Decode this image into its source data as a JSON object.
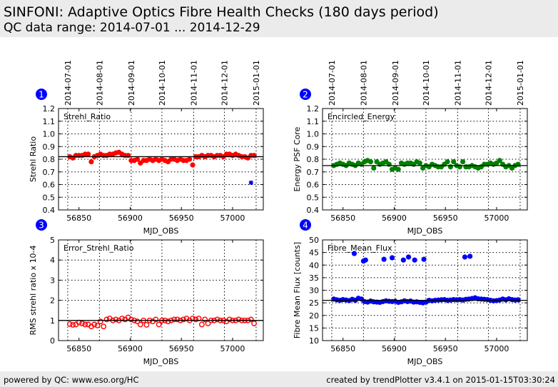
{
  "header": {
    "title": "SINFONI: Adaptive Optics Fibre Health Checks (180 days period)",
    "subtitle": "QC data range: 2014-07-01 ... 2014-12-29"
  },
  "footer": {
    "left": "powered by QC: www.eso.org/HC",
    "right": "created by trendPlotter v3.4.1 on 2015-01-15T03:30:24"
  },
  "colors": {
    "red": "#ff0000",
    "green": "#008000",
    "blue": "#0000ff",
    "header_bg": "#ebebeb"
  },
  "chart_data": {
    "type": "scatter",
    "x_label": "MJD_OBS",
    "xlim": [
      56830,
      57030
    ],
    "x_ticks": [
      56850,
      56900,
      56950,
      57000
    ],
    "date_ticks": [
      {
        "label": "2014-07-01",
        "mjd": 56839
      },
      {
        "label": "2014-08-01",
        "mjd": 56870
      },
      {
        "label": "2014-09-01",
        "mjd": 56901
      },
      {
        "label": "2014-10-01",
        "mjd": 56931
      },
      {
        "label": "2014-11-01",
        "mjd": 56962
      },
      {
        "label": "2014-12-01",
        "mjd": 56992
      },
      {
        "label": "2015-01-01",
        "mjd": 57023
      }
    ],
    "x": [
      56841,
      56844,
      56847,
      56850,
      56853,
      56856,
      56859,
      56862,
      56865,
      56868,
      56871,
      56874,
      56877,
      56880,
      56883,
      56886,
      56889,
      56892,
      56895,
      56898,
      56901,
      56904,
      56907,
      56910,
      56913,
      56916,
      56919,
      56922,
      56925,
      56928,
      56931,
      56934,
      56937,
      56940,
      56943,
      56946,
      56949,
      56952,
      56955,
      56958,
      56961,
      56964,
      56967,
      56970,
      56973,
      56976,
      56979,
      56982,
      56985,
      56988,
      56991,
      56994,
      56997,
      57000,
      57003,
      57006,
      57009,
      57012,
      57015,
      57018,
      57021
    ],
    "panels": [
      {
        "number": "1",
        "name": "Strehl_Ratio",
        "ylabel": "Strehl Ratio",
        "ylim": [
          0.4,
          1.2
        ],
        "y_ticks": [
          "0.4",
          "0.5",
          "0.6",
          "0.7",
          "0.8",
          "0.9",
          "1.0",
          "1.1",
          "1.2"
        ],
        "reference": 0.82,
        "color": "#ff0000",
        "marker": "filled-circle",
        "values": [
          0.82,
          0.81,
          0.83,
          0.83,
          0.83,
          0.84,
          0.84,
          0.78,
          0.82,
          0.83,
          0.84,
          0.83,
          0.83,
          0.84,
          0.84,
          0.85,
          0.855,
          0.84,
          0.83,
          0.83,
          0.79,
          0.79,
          0.8,
          0.77,
          0.79,
          0.79,
          0.8,
          0.79,
          0.8,
          0.79,
          0.8,
          0.79,
          0.78,
          0.8,
          0.8,
          0.79,
          0.8,
          0.79,
          0.79,
          0.8,
          0.755,
          0.82,
          0.82,
          0.83,
          0.82,
          0.83,
          0.83,
          0.82,
          0.83,
          0.83,
          0.82,
          0.84,
          0.84,
          0.83,
          0.84,
          0.83,
          0.82,
          0.82,
          0.81,
          0.83,
          0.83
        ],
        "outliers": [
          {
            "x": 57018,
            "y": 0.615,
            "color": "#0000ff",
            "marker": "asterisk"
          }
        ]
      },
      {
        "number": "2",
        "name": "Encircled_Energy",
        "ylabel": "Energy PSF Core",
        "ylim": [
          0.4,
          1.2
        ],
        "y_ticks": [
          "0.4",
          "0.5",
          "0.6",
          "0.7",
          "0.8",
          "0.9",
          "1.0",
          "1.1",
          "1.2"
        ],
        "reference": 0.75,
        "color": "#008000",
        "marker": "filled-circle",
        "values": [
          0.75,
          0.76,
          0.77,
          0.76,
          0.75,
          0.77,
          0.76,
          0.75,
          0.77,
          0.76,
          0.78,
          0.79,
          0.78,
          0.73,
          0.78,
          0.76,
          0.77,
          0.78,
          0.76,
          0.72,
          0.73,
          0.72,
          0.77,
          0.76,
          0.77,
          0.77,
          0.76,
          0.78,
          0.77,
          0.73,
          0.75,
          0.74,
          0.76,
          0.75,
          0.74,
          0.74,
          0.76,
          0.78,
          0.74,
          0.78,
          0.75,
          0.74,
          0.78,
          0.74,
          0.74,
          0.75,
          0.74,
          0.73,
          0.74,
          0.76,
          0.76,
          0.77,
          0.76,
          0.77,
          0.79,
          0.76,
          0.74,
          0.75,
          0.73,
          0.75,
          0.76
        ],
        "outliers": []
      },
      {
        "number": "3",
        "name": "Error_Strehl_Ratio",
        "ylabel": "RMS strehl ratio x 10-4",
        "ylim": [
          0,
          5
        ],
        "y_ticks": [
          "0",
          "1",
          "2",
          "3",
          "4",
          "5"
        ],
        "reference": 1.0,
        "color": "#ff0000",
        "marker": "open-circle",
        "values": [
          0.82,
          0.78,
          0.8,
          0.9,
          0.85,
          0.8,
          0.8,
          0.7,
          0.8,
          0.75,
          0.95,
          0.7,
          1.05,
          1.1,
          1.0,
          1.05,
          1.0,
          1.1,
          1.05,
          1.15,
          1.05,
          1.0,
          0.95,
          0.8,
          1.0,
          0.78,
          1.0,
          0.95,
          1.05,
          0.8,
          1.0,
          1.0,
          0.95,
          1.0,
          1.05,
          1.05,
          1.0,
          1.05,
          1.1,
          1.0,
          1.1,
          1.05,
          1.1,
          0.8,
          1.05,
          0.85,
          1.0,
          1.0,
          1.05,
          1.0,
          1.0,
          0.95,
          1.05,
          1.0,
          1.0,
          1.05,
          1.0,
          1.0,
          1.0,
          1.05,
          0.85
        ],
        "outliers": []
      },
      {
        "number": "4",
        "name": "Fibre_Mean_Flux",
        "ylabel": "Fibre Mean Flux [counts]",
        "ylim": [
          10,
          50
        ],
        "y_ticks": [
          "10",
          "15",
          "20",
          "25",
          "30",
          "35",
          "40",
          "45",
          "50"
        ],
        "reference": 26.0,
        "color": "#0000ff",
        "marker": "filled-circle",
        "values": [
          26.5,
          26.2,
          26.0,
          26.3,
          26.1,
          25.9,
          26.4,
          26.0,
          26.8,
          26.5,
          25.5,
          25.3,
          25.7,
          25.4,
          25.3,
          25.2,
          25.5,
          25.8,
          25.6,
          25.5,
          25.6,
          25.2,
          25.4,
          25.8,
          25.5,
          25.7,
          25.3,
          25.4,
          25.2,
          25.0,
          25.3,
          26.0,
          25.8,
          26.0,
          26.1,
          26.2,
          26.3,
          26.0,
          26.1,
          26.3,
          26.2,
          26.3,
          26.1,
          26.4,
          26.5,
          26.7,
          27.0,
          26.6,
          26.5,
          26.4,
          26.3,
          26.0,
          25.8,
          25.9,
          26.1,
          26.5,
          26.2,
          26.6,
          26.3,
          26.1,
          26.2
        ],
        "outliers": [
          {
            "x": 56861,
            "y": 44.6,
            "color": "#0000ff",
            "marker": "filled-circle"
          },
          {
            "x": 56870,
            "y": 41.6,
            "color": "#0000ff",
            "marker": "filled-circle"
          },
          {
            "x": 56872,
            "y": 42.0,
            "color": "#0000ff",
            "marker": "filled-circle"
          },
          {
            "x": 56890,
            "y": 42.3,
            "color": "#0000ff",
            "marker": "filled-circle"
          },
          {
            "x": 56898,
            "y": 42.9,
            "color": "#0000ff",
            "marker": "filled-circle"
          },
          {
            "x": 56909,
            "y": 42.0,
            "color": "#0000ff",
            "marker": "filled-circle"
          },
          {
            "x": 56914,
            "y": 43.2,
            "color": "#0000ff",
            "marker": "filled-circle"
          },
          {
            "x": 56920,
            "y": 42.0,
            "color": "#0000ff",
            "marker": "filled-circle"
          },
          {
            "x": 56929,
            "y": 42.3,
            "color": "#0000ff",
            "marker": "filled-circle"
          },
          {
            "x": 56969,
            "y": 43.2,
            "color": "#0000ff",
            "marker": "filled-circle"
          },
          {
            "x": 56974,
            "y": 43.5,
            "color": "#0000ff",
            "marker": "filled-circle"
          }
        ]
      }
    ]
  }
}
